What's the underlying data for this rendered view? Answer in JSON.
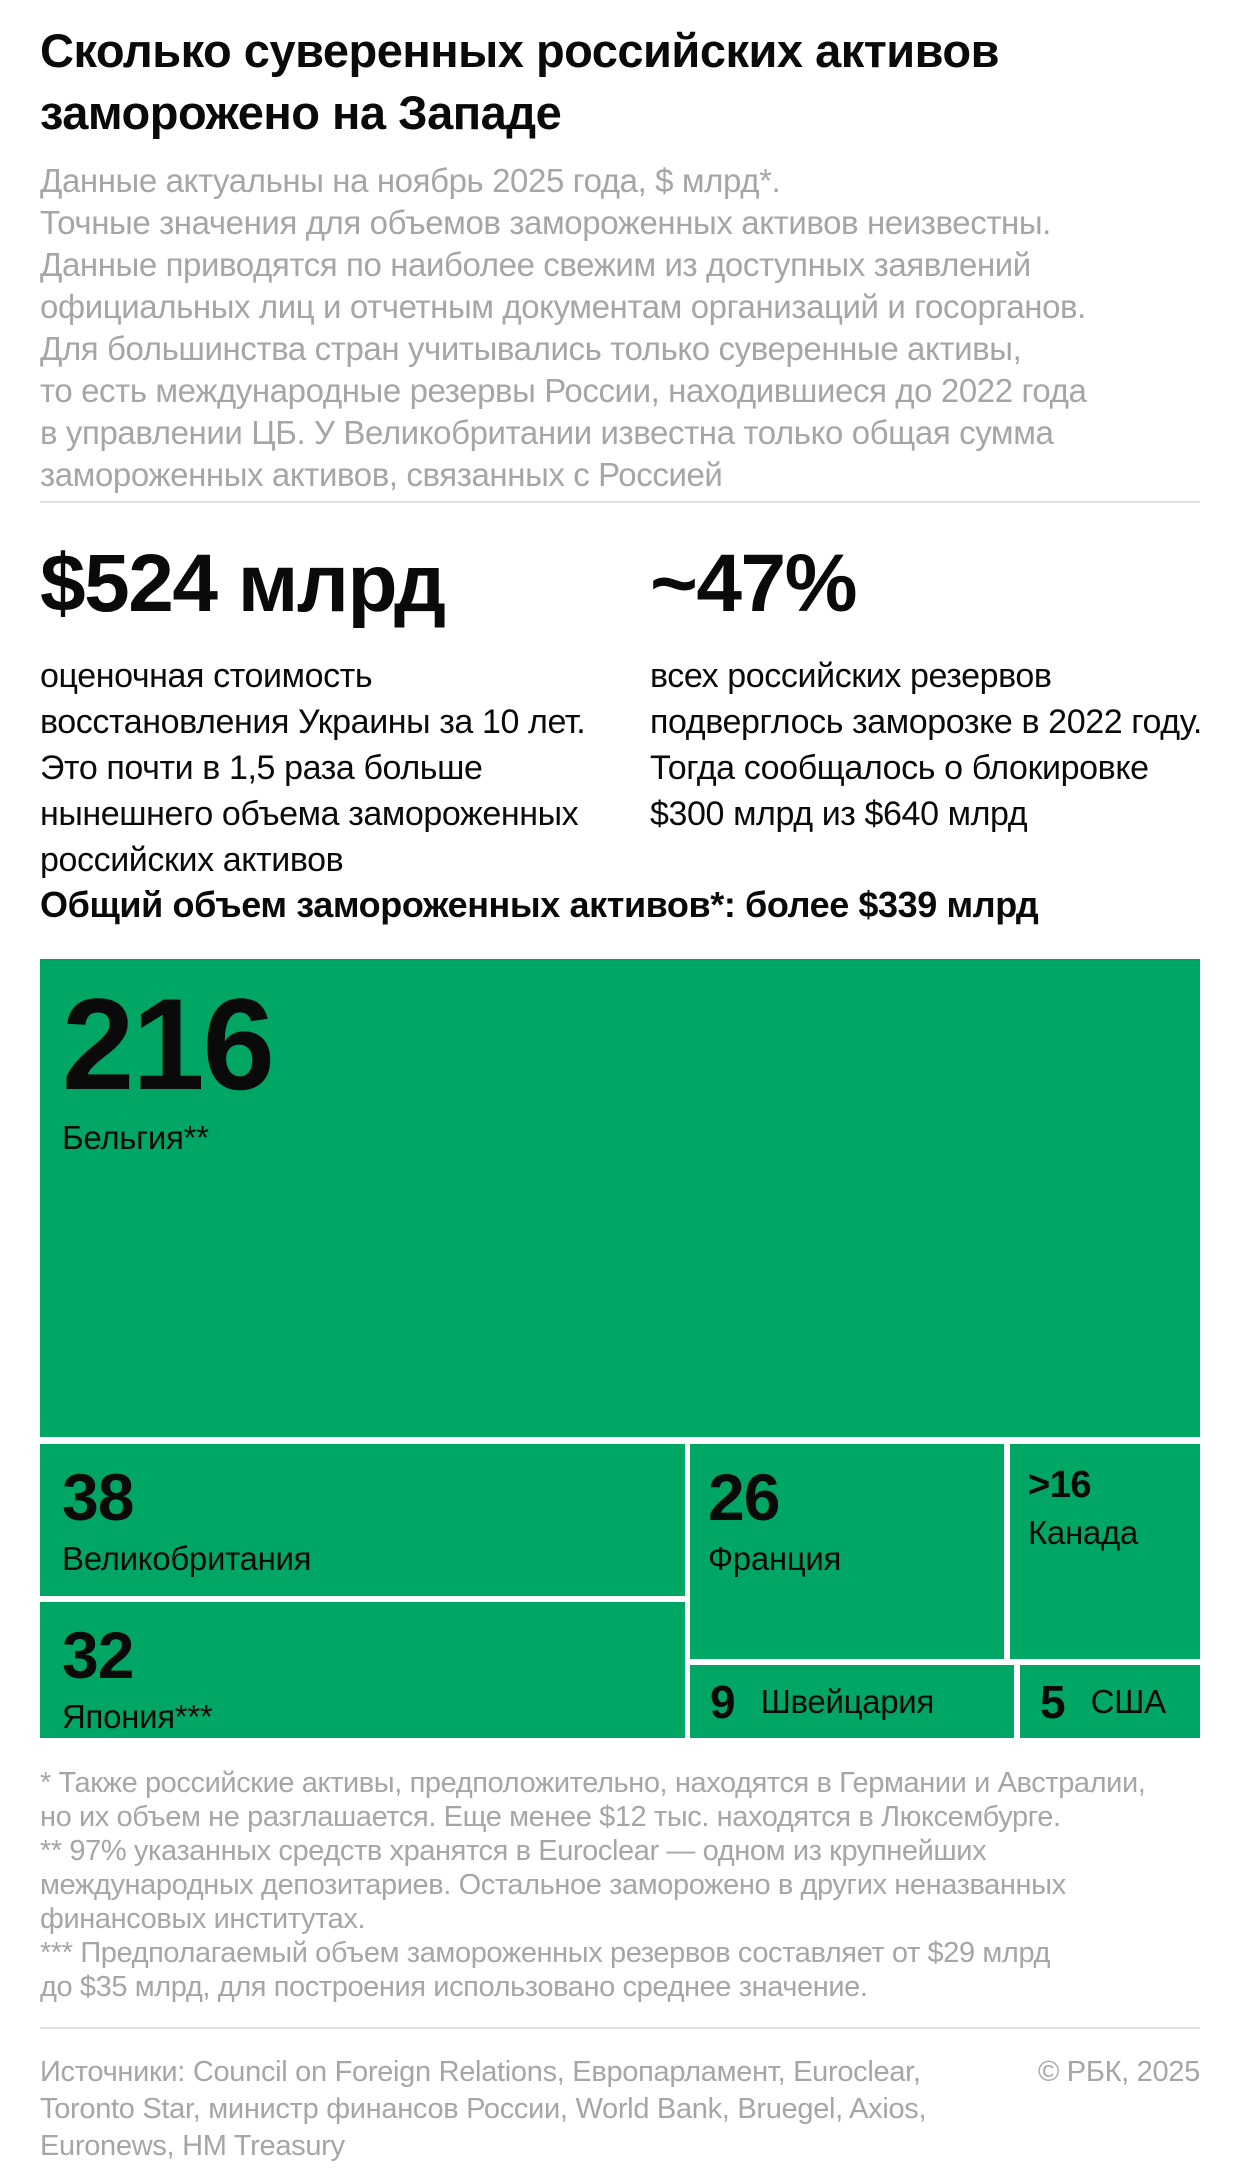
{
  "header": {
    "title_lines": [
      "Сколько суверенных российских активов",
      "заморожено на Западе"
    ],
    "intro_lines": [
      "Данные актуальны на ноябрь 2025 года, $ млрд*.",
      "Точные значения для объемов замороженных активов неизвестны.",
      "Данные приводятся по наиболее свежим из доступных заявлений",
      "официальных лиц и отчетным документам организаций и госорганов.",
      "Для большинства стран учитывались только суверенные активы,",
      "то есть международные резервы России, находившиеся до 2022 года",
      "в управлении ЦБ. У Великобритании известна только общая сумма",
      "замороженных активов, связанных с Россией"
    ]
  },
  "stats": {
    "left": {
      "value": "$524 млрд",
      "desc_lines": [
        "оценочная стоимость",
        "восстановления Украины за 10 лет.",
        "Это почти в 1,5 раза больше",
        "нынешнего объема замороженных",
        "российских активов"
      ]
    },
    "right": {
      "value": "~47%",
      "desc_lines": [
        "всех российских резервов",
        "подверглось заморозке в 2022 году.",
        "Тогда сообщалось о блокировке",
        "$300 млрд из $640 млрд"
      ]
    }
  },
  "chart_data": {
    "type": "treemap",
    "title": "Общий объем замороженных активов*: более $339 млрд",
    "units": "$ млрд",
    "total_label": "более $339 млрд",
    "tiles": [
      {
        "label": "Бельгия**",
        "value_label": "216",
        "value": 216
      },
      {
        "label": "Великобритания",
        "value_label": "38",
        "value": 38
      },
      {
        "label": "Япония***",
        "value_label": "32",
        "value": 32
      },
      {
        "label": "Франция",
        "value_label": "26",
        "value": 26
      },
      {
        "label": "Канада",
        "value_label": ">16",
        "value": 16
      },
      {
        "label": "Швейцария",
        "value_label": "9",
        "value": 9
      },
      {
        "label": "США",
        "value_label": "5",
        "value": 5
      }
    ],
    "colors": {
      "tile_fill": "#00a663",
      "tile_text": "#0a0a0a",
      "background": "#ffffff",
      "muted_text": "#a6a6a6"
    },
    "legend": "none",
    "grid": false
  },
  "footnotes_lines": [
    "* Также российские активы, предположительно, находятся в Германии и Австралии,",
    "но их объем не разглашается. Еще менее $12 тыс. находятся в Люксембурге.",
    "** 97% указанных средств хранятся в Euroclear — одном из крупнейших",
    "международных депозитариев. Остальное заморожено в других неназванных",
    "финансовых институтах.",
    "*** Предполагаемый объем замороженных резервов составляет от $29 млрд",
    "до $35 млрд, для построения использовано среднее значение."
  ],
  "footer": {
    "sources_lines": [
      "Источники: Council on Foreign Relations, Европарламент, Euroclear,",
      "Toronto Star, министр финансов России, World Bank, Bruegel, Axios,",
      "Euronews, HM Treasury"
    ],
    "copyright": "© РБК, 2025"
  }
}
